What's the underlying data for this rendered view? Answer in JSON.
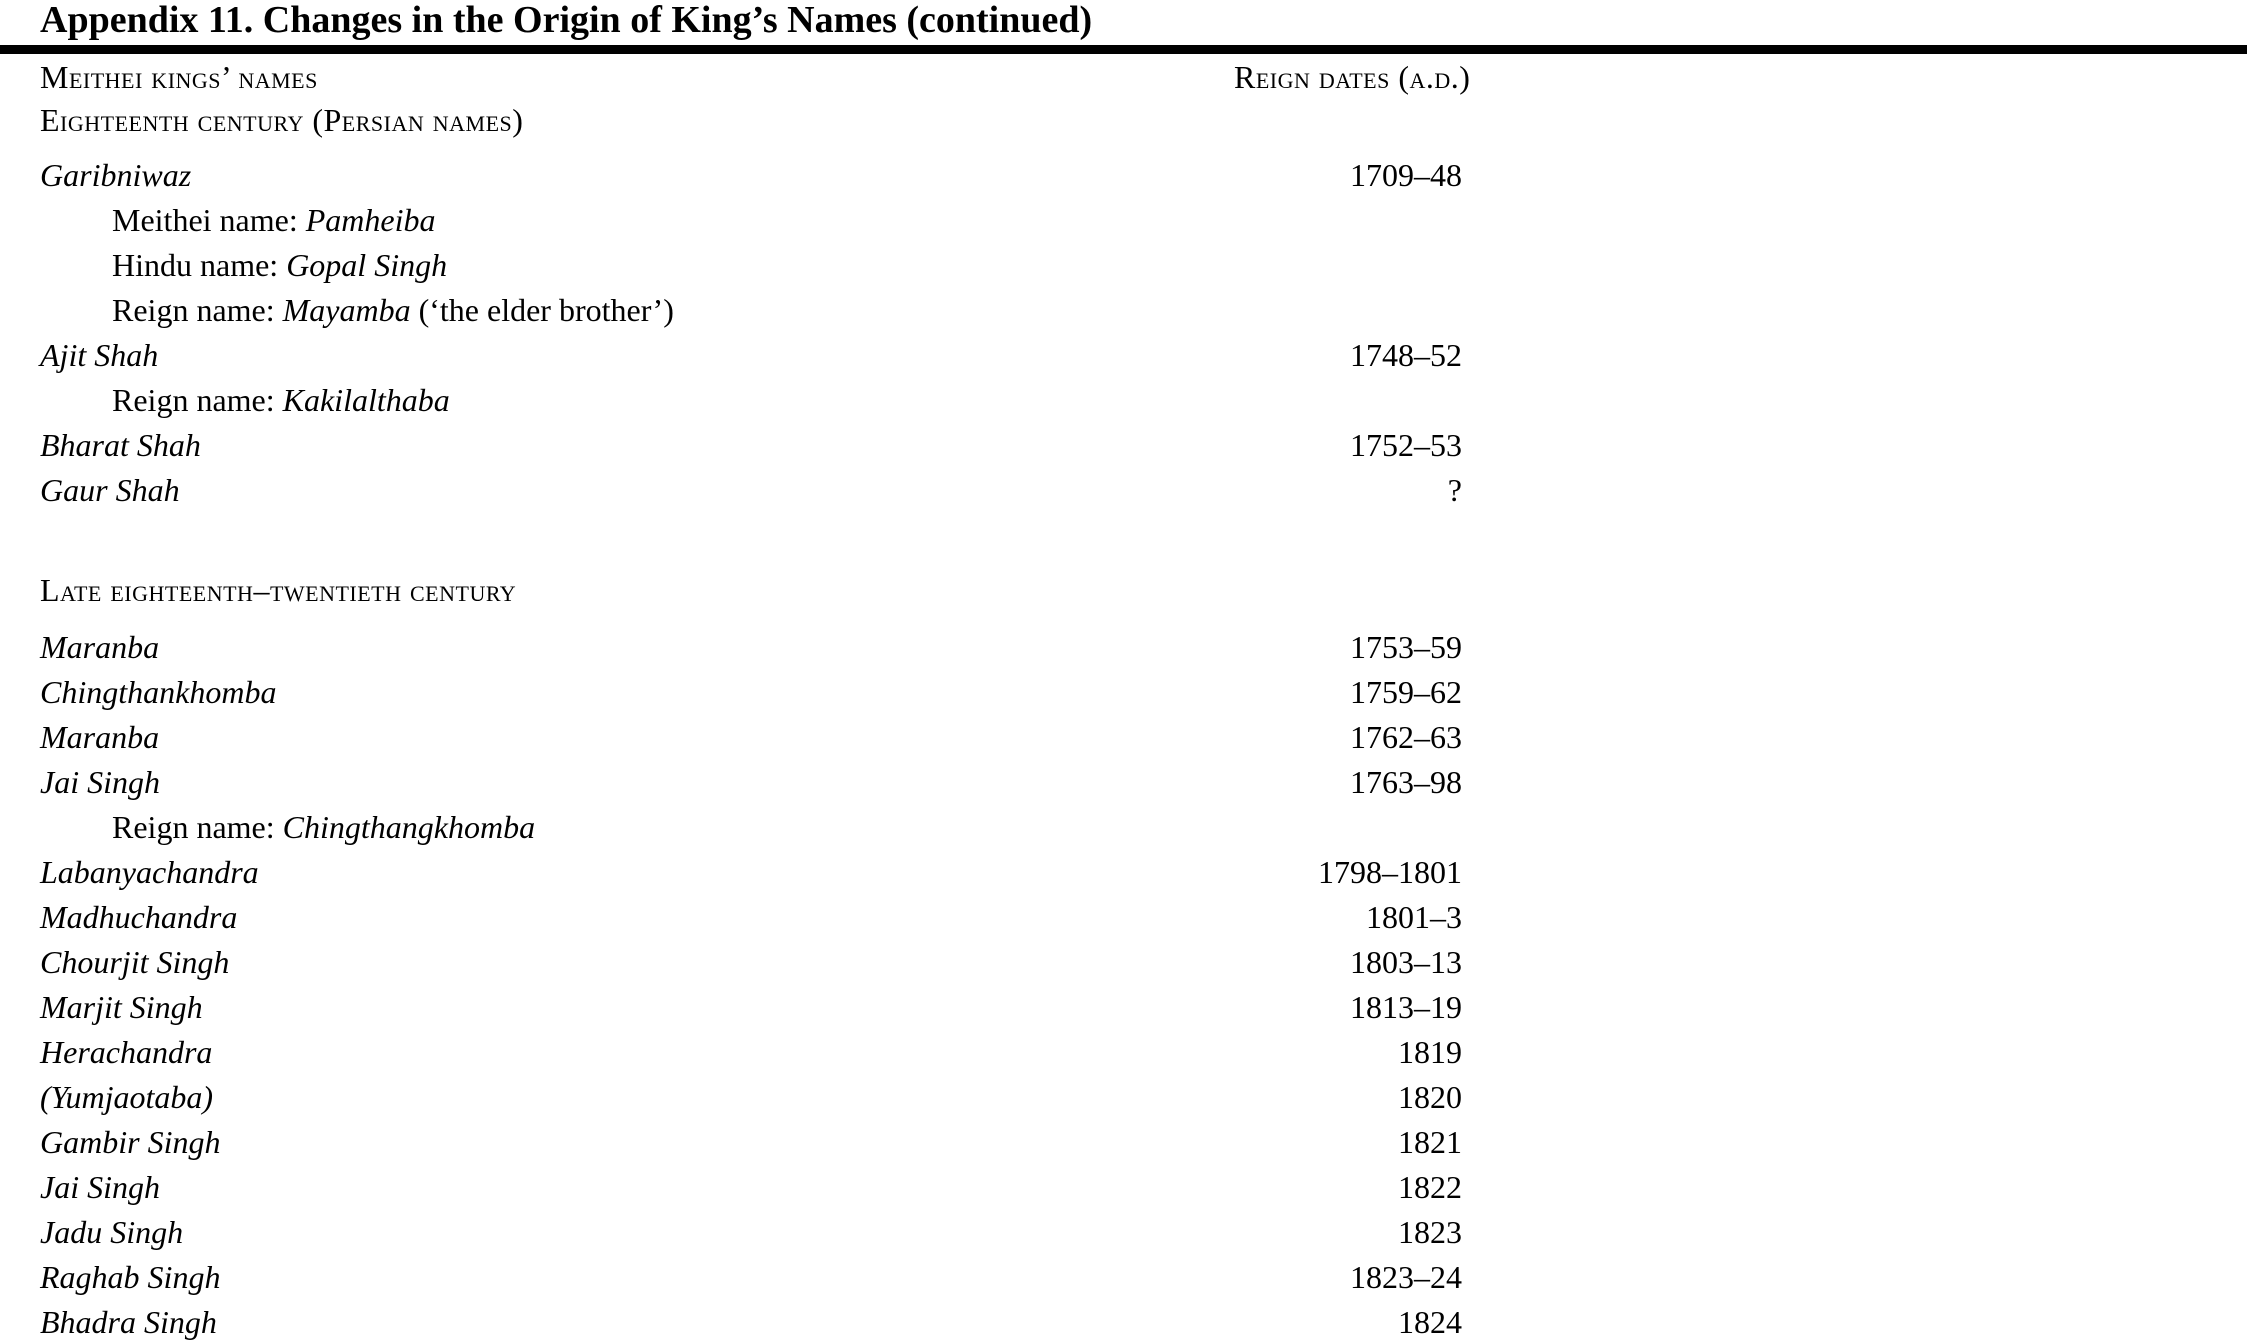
{
  "colors": {
    "text": "#000000",
    "background": "#ffffff"
  },
  "title": "Appendix 11. Changes in the Origin of King’s Names (continued)",
  "columns": {
    "names_label": "Meithei kings’ names",
    "dates_label": "Reign dates (a.d.)"
  },
  "sections": [
    {
      "heading": "Eighteenth century (Persian names)",
      "rows": [
        {
          "type": "king",
          "name": "Garibniwaz",
          "date": "1709–48"
        },
        {
          "type": "sub",
          "label": "Meithei name: ",
          "value": "Pamheiba",
          "suffix": ""
        },
        {
          "type": "sub",
          "label": "Hindu name: ",
          "value": "Gopal Singh",
          "suffix": ""
        },
        {
          "type": "sub",
          "label": "Reign name: ",
          "value": "Mayamba",
          "suffix": " (‘the elder brother’)"
        },
        {
          "type": "king",
          "name": "Ajit Shah",
          "date": "1748–52"
        },
        {
          "type": "sub",
          "label": "Reign name: ",
          "value": "Kakilalthaba",
          "suffix": ""
        },
        {
          "type": "king",
          "name": "Bharat Shah",
          "date": "1752–53"
        },
        {
          "type": "king",
          "name": "Gaur Shah",
          "date": "?"
        }
      ]
    },
    {
      "heading": "Late eighteenth–twentieth century",
      "rows": [
        {
          "type": "king",
          "name": "Maranba",
          "date": "1753–59"
        },
        {
          "type": "king",
          "name": "Chingthankhomba",
          "date": "1759–62"
        },
        {
          "type": "king",
          "name": "Maranba",
          "date": "1762–63"
        },
        {
          "type": "king",
          "name": "Jai Singh",
          "date": "1763–98"
        },
        {
          "type": "sub",
          "label": "Reign name: ",
          "value": "Chingthangkhomba",
          "suffix": ""
        },
        {
          "type": "king",
          "name": "Labanyachandra",
          "date": "1798–1801"
        },
        {
          "type": "king",
          "name": "Madhuchandra",
          "date": "1801–3"
        },
        {
          "type": "king",
          "name": "Chourjit Singh",
          "date": "1803–13"
        },
        {
          "type": "king",
          "name": "Marjit Singh",
          "date": "1813–19"
        },
        {
          "type": "king",
          "name": "Herachandra",
          "date": "1819"
        },
        {
          "type": "king",
          "name": "(Yumjaotaba)",
          "date": "1820"
        },
        {
          "type": "king",
          "name": "Gambir Singh",
          "date": "1821"
        },
        {
          "type": "king",
          "name": "Jai Singh",
          "date": "1822"
        },
        {
          "type": "king",
          "name": "Jadu Singh",
          "date": "1823"
        },
        {
          "type": "king",
          "name": "Raghab Singh",
          "date": "1823–24"
        },
        {
          "type": "king",
          "name": "Bhadra Singh",
          "date": "1824"
        }
      ]
    }
  ]
}
